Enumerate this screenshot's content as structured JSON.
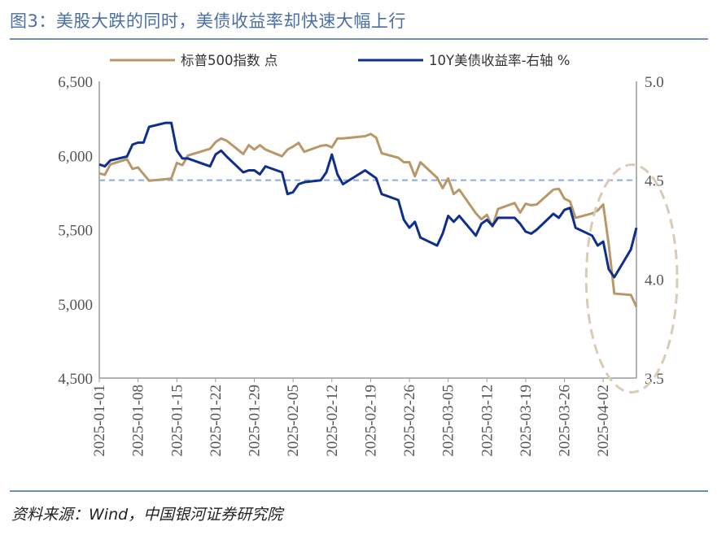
{
  "figure": {
    "title": "图3：美股大跌的同时，美债收益率却快速大幅上行",
    "source": "资料来源：Wind，中国银河证券研究院"
  },
  "colors": {
    "title": "#4a6fa5",
    "spx": "#b89868",
    "yield": "#0e2f8e",
    "ref_line": "#8eaadb",
    "ellipse": "#d9cbb5",
    "axis": "#9a9a9a"
  },
  "chart_data": {
    "type": "line",
    "legend": {
      "position": "top",
      "entries": [
        "标普500指数 点",
        "10Y美债收益率-右轴 %"
      ]
    },
    "grid": false,
    "x_ticks": [
      "2025-01-01",
      "2025-01-08",
      "2025-01-15",
      "2025-01-22",
      "2025-01-29",
      "2025-02-05",
      "2025-02-12",
      "2025-02-19",
      "2025-02-26",
      "2025-03-05",
      "2025-03-12",
      "2025-03-19",
      "2025-03-26",
      "2025-04-02"
    ],
    "left_axis": {
      "min": 4500,
      "max": 6500,
      "ticks": [
        "4,500",
        "5,000",
        "5,500",
        "6,000",
        "6,500"
      ],
      "tick_values": [
        4500,
        5000,
        5500,
        6000,
        6500
      ]
    },
    "right_axis": {
      "min": 3.5,
      "max": 5.0,
      "ticks": [
        "3.5",
        "4.0",
        "4.5",
        "5.0"
      ],
      "tick_values": [
        3.5,
        4.0,
        4.5,
        5.0
      ]
    },
    "reference_line": {
      "axis": "right",
      "value": 4.5
    },
    "highlight_ellipse": {
      "from": "2025-04-01",
      "to": "2025-04-08"
    },
    "series": [
      {
        "name": "标普500指数 点",
        "axis": "left",
        "x": [
          "2025-01-01",
          "2025-01-02",
          "2025-01-03",
          "2025-01-06",
          "2025-01-07",
          "2025-01-08",
          "2025-01-10",
          "2025-01-13",
          "2025-01-14",
          "2025-01-15",
          "2025-01-16",
          "2025-01-17",
          "2025-01-21",
          "2025-01-22",
          "2025-01-23",
          "2025-01-24",
          "2025-01-27",
          "2025-01-28",
          "2025-01-29",
          "2025-01-30",
          "2025-01-31",
          "2025-02-03",
          "2025-02-04",
          "2025-02-05",
          "2025-02-06",
          "2025-02-07",
          "2025-02-10",
          "2025-02-11",
          "2025-02-12",
          "2025-02-13",
          "2025-02-14",
          "2025-02-18",
          "2025-02-19",
          "2025-02-20",
          "2025-02-21",
          "2025-02-24",
          "2025-02-25",
          "2025-02-26",
          "2025-02-27",
          "2025-02-28",
          "2025-03-03",
          "2025-03-04",
          "2025-03-05",
          "2025-03-06",
          "2025-03-07",
          "2025-03-10",
          "2025-03-11",
          "2025-03-12",
          "2025-03-13",
          "2025-03-14",
          "2025-03-17",
          "2025-03-18",
          "2025-03-19",
          "2025-03-20",
          "2025-03-21",
          "2025-03-24",
          "2025-03-25",
          "2025-03-26",
          "2025-03-27",
          "2025-03-28",
          "2025-03-31",
          "2025-04-01",
          "2025-04-02",
          "2025-04-03",
          "2025-04-04",
          "2025-04-07",
          "2025-04-08"
        ],
        "values": [
          5880,
          5870,
          5940,
          5975,
          5910,
          5920,
          5830,
          5840,
          5845,
          5950,
          5935,
          6000,
          6045,
          6090,
          6115,
          6100,
          6010,
          6070,
          6040,
          6070,
          6040,
          5995,
          6040,
          6060,
          6085,
          6025,
          6065,
          6070,
          6055,
          6115,
          6115,
          6130,
          6145,
          6120,
          6015,
          5985,
          5955,
          5955,
          5860,
          5955,
          5850,
          5780,
          5845,
          5740,
          5770,
          5610,
          5570,
          5600,
          5520,
          5640,
          5680,
          5615,
          5675,
          5665,
          5670,
          5770,
          5775,
          5710,
          5690,
          5580,
          5610,
          5630,
          5670,
          5400,
          5070,
          5060,
          4980
        ]
      },
      {
        "name": "10Y美债收益率-右轴 %",
        "axis": "right",
        "x": [
          "2025-01-01",
          "2025-01-02",
          "2025-01-03",
          "2025-01-06",
          "2025-01-07",
          "2025-01-08",
          "2025-01-09",
          "2025-01-10",
          "2025-01-13",
          "2025-01-14",
          "2025-01-15",
          "2025-01-16",
          "2025-01-17",
          "2025-01-21",
          "2025-01-22",
          "2025-01-23",
          "2025-01-24",
          "2025-01-27",
          "2025-01-28",
          "2025-01-29",
          "2025-01-30",
          "2025-01-31",
          "2025-02-03",
          "2025-02-04",
          "2025-02-05",
          "2025-02-06",
          "2025-02-07",
          "2025-02-10",
          "2025-02-11",
          "2025-02-12",
          "2025-02-13",
          "2025-02-14",
          "2025-02-18",
          "2025-02-19",
          "2025-02-20",
          "2025-02-21",
          "2025-02-24",
          "2025-02-25",
          "2025-02-26",
          "2025-02-27",
          "2025-02-28",
          "2025-03-03",
          "2025-03-04",
          "2025-03-05",
          "2025-03-06",
          "2025-03-07",
          "2025-03-10",
          "2025-03-11",
          "2025-03-12",
          "2025-03-13",
          "2025-03-14",
          "2025-03-17",
          "2025-03-18",
          "2025-03-19",
          "2025-03-20",
          "2025-03-21",
          "2025-03-24",
          "2025-03-25",
          "2025-03-26",
          "2025-03-27",
          "2025-03-28",
          "2025-03-31",
          "2025-04-01",
          "2025-04-02",
          "2025-04-03",
          "2025-04-04",
          "2025-04-07",
          "2025-04-08"
        ],
        "values": [
          4.58,
          4.57,
          4.6,
          4.62,
          4.68,
          4.69,
          4.69,
          4.77,
          4.79,
          4.79,
          4.65,
          4.61,
          4.61,
          4.57,
          4.63,
          4.65,
          4.62,
          4.54,
          4.55,
          4.55,
          4.53,
          4.57,
          4.54,
          4.43,
          4.44,
          4.48,
          4.49,
          4.5,
          4.54,
          4.63,
          4.53,
          4.48,
          4.55,
          4.53,
          4.51,
          4.43,
          4.4,
          4.3,
          4.26,
          4.29,
          4.21,
          4.17,
          4.23,
          4.32,
          4.29,
          4.32,
          4.22,
          4.28,
          4.3,
          4.27,
          4.31,
          4.31,
          4.28,
          4.24,
          4.23,
          4.25,
          4.33,
          4.31,
          4.35,
          4.36,
          4.26,
          4.22,
          4.17,
          4.19,
          4.05,
          4.01,
          4.15,
          4.26
        ]
      }
    ]
  }
}
